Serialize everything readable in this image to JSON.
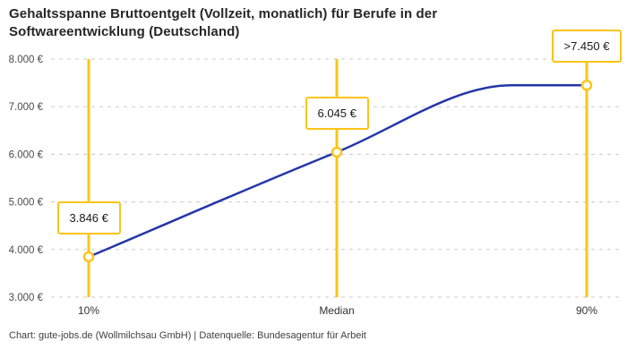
{
  "header": {
    "title": "Gehaltsspanne Bruttoentgelt (Vollzeit, monatlich) für Berufe in der Softwareentwicklung (Deutschland)"
  },
  "footer": {
    "text": "Chart: gute-jobs.de (Wollmilchsau GmbH) | Datenquelle: Bundesagentur für Arbeit"
  },
  "colors": {
    "accent_yellow": "#fcc419",
    "line_blue": "#2336a8",
    "grid_gray": "#c9c9c9",
    "title_text": "#262626",
    "axis_text": "#4c4c4c",
    "footer_text": "#3f3f3f"
  },
  "chart_data": {
    "type": "line",
    "title": "Gehaltsspanne Bruttoentgelt (Vollzeit, monatlich) für Berufe in der Softwareentwicklung (Deutschland)",
    "categories": [
      "10%",
      "Median",
      "90%"
    ],
    "values": [
      3846,
      6045,
      7450
    ],
    "value_labels": [
      "3.846 €",
      "6.045 €",
      ">7.450 €"
    ],
    "last_value_capped": true,
    "ylim": [
      3000,
      8000
    ],
    "ytick_step": 1000,
    "yticks": [
      "3.000 €",
      "4.000 €",
      "5.000 €",
      "6.000 €",
      "7.000 €",
      "8.000 €"
    ],
    "xlabel": "",
    "ylabel": "",
    "grid": "horizontal-dashed",
    "legend": "none",
    "marker": "open-circle",
    "notes": "Vertical yellow reference lines at each quantile; curve plateaus at capped top value"
  }
}
